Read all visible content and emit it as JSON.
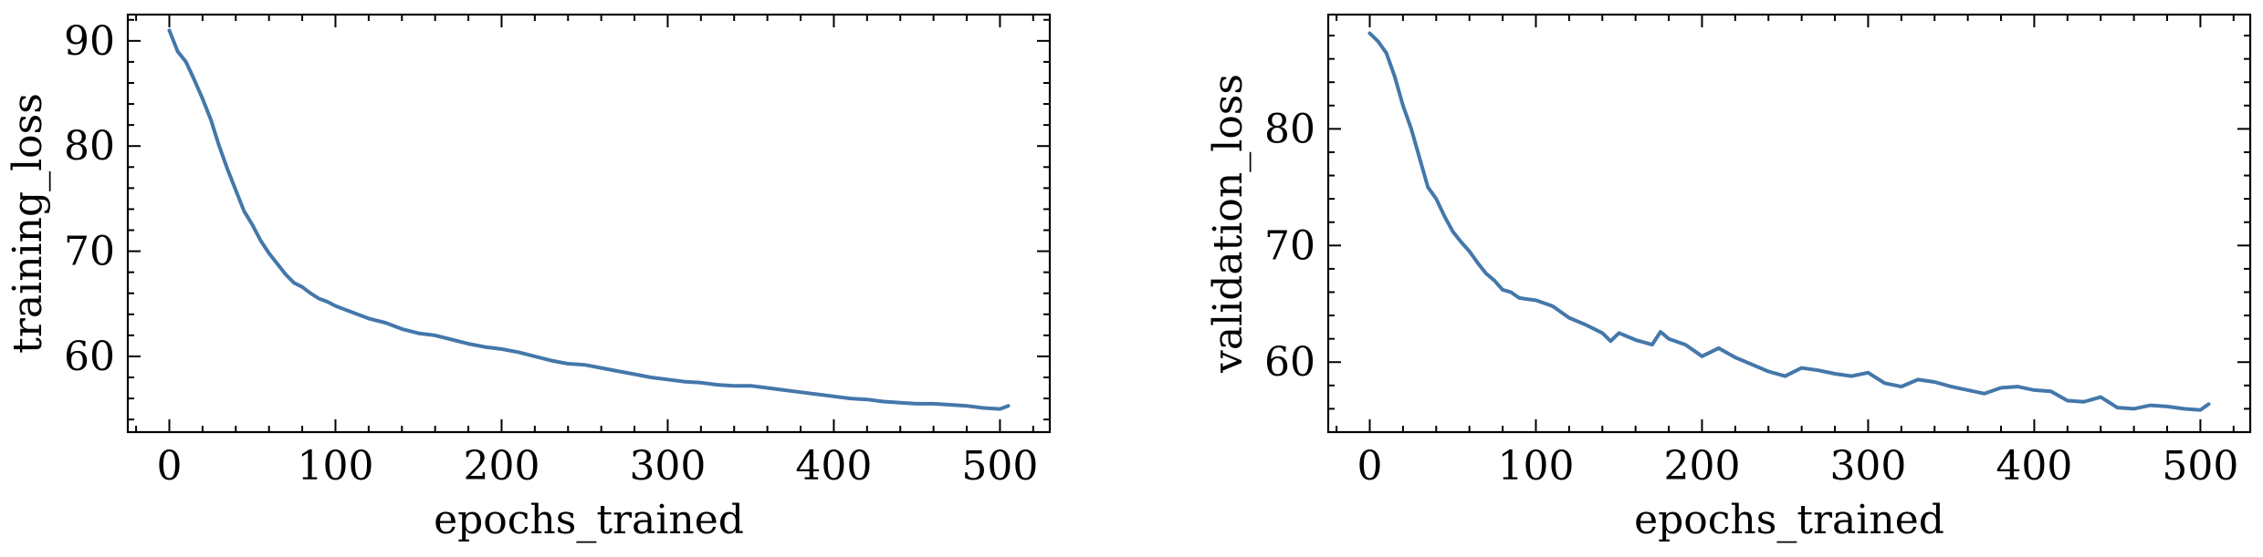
{
  "colors": {
    "series": "#4477aa",
    "axis": "#000000",
    "background": "#ffffff"
  },
  "chart_data": [
    {
      "type": "line",
      "xlabel": "epochs_trained",
      "ylabel": "training_loss",
      "xlim": [
        -25,
        530
      ],
      "ylim": [
        52.8,
        92.5
      ],
      "xticks": [
        0,
        100,
        200,
        300,
        400,
        500
      ],
      "xtick_labels": [
        "0",
        "100",
        "200",
        "300",
        "400",
        "500"
      ],
      "yticks": [
        60,
        70,
        80,
        90
      ],
      "ytick_labels": [
        "60",
        "70",
        "80",
        "90"
      ],
      "grid": false,
      "legend": "none",
      "series": [
        {
          "x": [
            0,
            5,
            10,
            15,
            20,
            25,
            30,
            35,
            40,
            45,
            50,
            55,
            60,
            65,
            70,
            75,
            80,
            85,
            90,
            95,
            100,
            110,
            120,
            130,
            140,
            150,
            160,
            170,
            180,
            190,
            200,
            210,
            220,
            230,
            240,
            250,
            260,
            270,
            280,
            290,
            300,
            310,
            320,
            330,
            340,
            350,
            360,
            370,
            380,
            390,
            400,
            410,
            420,
            430,
            440,
            450,
            460,
            470,
            480,
            490,
            500,
            505
          ],
          "y": [
            91.0,
            89.0,
            88.0,
            86.3,
            84.5,
            82.5,
            80.0,
            77.8,
            75.8,
            73.8,
            72.5,
            71.0,
            69.8,
            68.8,
            67.8,
            67.0,
            66.6,
            66.0,
            65.5,
            65.2,
            64.8,
            64.2,
            63.6,
            63.2,
            62.6,
            62.2,
            62.0,
            61.6,
            61.2,
            60.9,
            60.7,
            60.4,
            60.0,
            59.6,
            59.3,
            59.2,
            58.9,
            58.6,
            58.3,
            58.0,
            57.8,
            57.6,
            57.5,
            57.3,
            57.2,
            57.2,
            57.0,
            56.8,
            56.6,
            56.4,
            56.2,
            56.0,
            55.9,
            55.7,
            55.6,
            55.5,
            55.5,
            55.4,
            55.3,
            55.1,
            55.0,
            55.3
          ]
        }
      ]
    },
    {
      "type": "line",
      "xlabel": "epochs_trained",
      "ylabel": "validation_loss",
      "xlim": [
        -25,
        530
      ],
      "ylim": [
        54.0,
        89.8
      ],
      "xticks": [
        0,
        100,
        200,
        300,
        400,
        500
      ],
      "xtick_labels": [
        "0",
        "100",
        "200",
        "300",
        "400",
        "500"
      ],
      "yticks": [
        60,
        70,
        80
      ],
      "ytick_labels": [
        "60",
        "70",
        "80"
      ],
      "grid": false,
      "legend": "none",
      "series": [
        {
          "x": [
            0,
            5,
            10,
            15,
            20,
            25,
            30,
            35,
            40,
            45,
            50,
            55,
            60,
            65,
            70,
            75,
            80,
            85,
            90,
            95,
            100,
            110,
            120,
            130,
            140,
            145,
            150,
            160,
            170,
            175,
            180,
            190,
            200,
            210,
            220,
            230,
            240,
            250,
            260,
            270,
            280,
            290,
            300,
            310,
            320,
            330,
            340,
            350,
            360,
            370,
            380,
            390,
            400,
            410,
            420,
            430,
            440,
            450,
            460,
            470,
            480,
            490,
            500,
            505
          ],
          "y": [
            88.2,
            87.5,
            86.5,
            84.5,
            82.0,
            80.0,
            77.5,
            75.0,
            74.0,
            72.5,
            71.2,
            70.3,
            69.5,
            68.5,
            67.6,
            67.0,
            66.2,
            66.0,
            65.5,
            65.4,
            65.3,
            64.8,
            63.8,
            63.2,
            62.5,
            61.8,
            62.5,
            61.9,
            61.5,
            62.6,
            62.0,
            61.5,
            60.5,
            61.2,
            60.4,
            59.8,
            59.2,
            58.8,
            59.5,
            59.3,
            59.0,
            58.8,
            59.1,
            58.2,
            57.9,
            58.5,
            58.3,
            57.9,
            57.6,
            57.3,
            57.8,
            57.9,
            57.6,
            57.5,
            56.7,
            56.6,
            57.0,
            56.1,
            56.0,
            56.3,
            56.2,
            56.0,
            55.9,
            56.4
          ]
        }
      ]
    }
  ]
}
